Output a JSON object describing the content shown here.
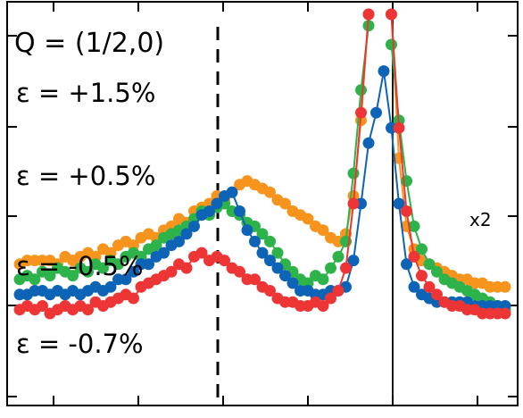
{
  "chart_data": {
    "type": "line",
    "title": "Q = (1/2,0)",
    "xlabel": "",
    "ylabel": "",
    "grid": false,
    "x": [
      0,
      1,
      2,
      3,
      4,
      5,
      6,
      7,
      8,
      9,
      10,
      11,
      12,
      13,
      14,
      15,
      16,
      17,
      18,
      19,
      20,
      21,
      22,
      23,
      24,
      25,
      26,
      27,
      28,
      29,
      30,
      31,
      32,
      33,
      34,
      35,
      36,
      37,
      38,
      39,
      40,
      41,
      42,
      43,
      44,
      45,
      46,
      47,
      48,
      49,
      50,
      51,
      52,
      53,
      54,
      55,
      56,
      57,
      58,
      59,
      60,
      61,
      62,
      63,
      64
    ],
    "reference_line_x": 24,
    "center_line_x": 46,
    "annotation": "x2",
    "series": [
      {
        "name": "ε = +1.5%",
        "color": "#f7941d",
        "values": [
          0.34,
          0.35,
          0.35,
          0.35,
          0.35,
          0.34,
          0.36,
          0.35,
          0.36,
          0.37,
          0.36,
          0.38,
          0.37,
          0.39,
          0.4,
          0.39,
          0.41,
          0.42,
          0.41,
          0.43,
          0.44,
          0.46,
          0.45,
          0.48,
          0.49,
          0.5,
          0.52,
          0.51,
          0.53,
          0.55,
          0.56,
          0.55,
          0.54,
          0.53,
          0.51,
          0.5,
          0.48,
          0.47,
          0.46,
          0.44,
          0.43,
          0.41,
          0.4,
          0.42,
          0.52,
          0.72,
          1.0,
          null,
          null,
          1.0,
          0.62,
          0.44,
          0.38,
          0.35,
          0.34,
          0.33,
          0.32,
          0.31,
          0.3,
          0.3,
          0.29,
          0.29,
          0.28,
          0.28,
          0.28
        ]
      },
      {
        "name": "ε = +0.5%",
        "color": "#2db34a",
        "values": [
          0.3,
          0.31,
          0.3,
          0.32,
          0.31,
          0.33,
          0.32,
          0.31,
          0.33,
          0.32,
          0.34,
          0.33,
          0.35,
          0.34,
          0.36,
          0.37,
          0.36,
          0.38,
          0.39,
          0.41,
          0.42,
          0.43,
          0.44,
          0.46,
          0.48,
          0.47,
          0.49,
          0.5,
          0.48,
          0.47,
          0.45,
          0.44,
          0.42,
          0.4,
          0.37,
          0.34,
          0.32,
          0.3,
          0.29,
          0.31,
          0.3,
          0.33,
          0.36,
          0.4,
          0.58,
          0.8,
          0.97,
          null,
          null,
          0.92,
          0.72,
          0.56,
          0.44,
          0.38,
          0.34,
          0.32,
          0.3,
          0.29,
          0.28,
          0.27,
          0.26,
          0.25,
          0.24,
          0.23,
          0.22
        ]
      },
      {
        "name": "ε = -0.5%",
        "color": "#0d63b5",
        "values": [
          0.26,
          0.26,
          0.27,
          0.27,
          0.26,
          0.27,
          0.26,
          0.27,
          0.26,
          0.27,
          0.28,
          0.27,
          0.28,
          0.3,
          0.3,
          0.32,
          0.34,
          0.34,
          0.36,
          0.37,
          0.39,
          0.4,
          0.42,
          0.44,
          0.47,
          0.48,
          0.5,
          0.52,
          0.53,
          0.48,
          0.43,
          0.4,
          0.37,
          0.35,
          0.33,
          0.31,
          0.29,
          0.27,
          0.27,
          0.26,
          0.26,
          0.27,
          0.27,
          0.28,
          0.35,
          0.5,
          0.66,
          0.74,
          0.85,
          0.7,
          0.5,
          0.34,
          0.28,
          0.26,
          0.25,
          0.24,
          0.24,
          0.24,
          0.24,
          0.24,
          0.23,
          0.23,
          0.23,
          0.23,
          0.23
        ]
      },
      {
        "name": "ε = -0.7%",
        "color": "#ee3536",
        "values": [
          0.22,
          0.23,
          0.22,
          0.23,
          0.21,
          0.22,
          0.23,
          0.22,
          0.23,
          0.22,
          0.24,
          0.23,
          0.24,
          0.25,
          0.26,
          0.25,
          0.28,
          0.29,
          0.3,
          0.31,
          0.32,
          0.34,
          0.33,
          0.36,
          0.37,
          0.35,
          0.36,
          0.35,
          0.33,
          0.32,
          0.3,
          0.3,
          0.28,
          0.27,
          0.25,
          0.24,
          0.24,
          0.23,
          0.23,
          0.24,
          0.23,
          0.25,
          0.27,
          0.33,
          0.5,
          0.74,
          1.0,
          null,
          null,
          1.0,
          0.7,
          0.48,
          0.36,
          0.31,
          0.28,
          0.26,
          0.24,
          0.23,
          0.23,
          0.22,
          0.22,
          0.21,
          0.21,
          0.21,
          0.21
        ]
      }
    ]
  }
}
